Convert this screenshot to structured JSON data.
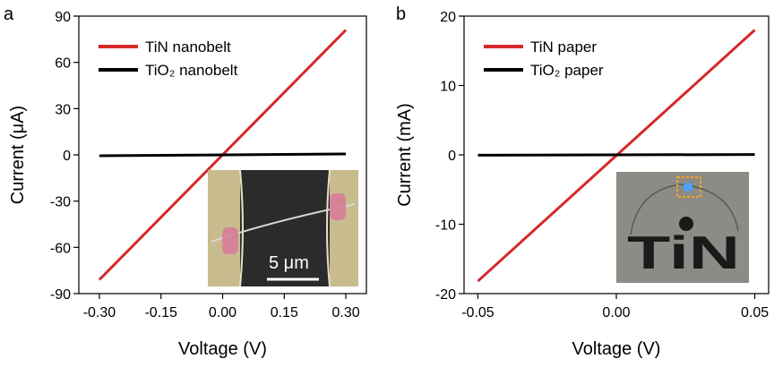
{
  "chart_data": [
    {
      "type": "line",
      "panel_label": "a",
      "xlabel": "Voltage (V)",
      "ylabel": "Current (μA)",
      "xlim": [
        -0.35,
        0.35
      ],
      "ylim": [
        -90,
        90
      ],
      "xticks": [
        -0.3,
        -0.15,
        0.0,
        0.15,
        0.3
      ],
      "xtick_labels": [
        "-0.30",
        "-0.15",
        "0.00",
        "0.15",
        "0.30"
      ],
      "yticks": [
        -90,
        -60,
        -30,
        0,
        30,
        60,
        90
      ],
      "ytick_labels": [
        "-90",
        "-60",
        "-30",
        "0",
        "30",
        "60",
        "90"
      ],
      "legend_position": "top-left",
      "series": [
        {
          "name": "TiN nanobelt",
          "color": "#d62828",
          "x": [
            -0.3,
            0.3
          ],
          "y": [
            -81,
            81
          ]
        },
        {
          "name": "TiO₂ nanobelt",
          "color": "#000000",
          "x": [
            -0.3,
            0.3
          ],
          "y": [
            -0.6,
            0.6
          ]
        }
      ],
      "inset": {
        "description_label": "5 μm"
      }
    },
    {
      "type": "line",
      "panel_label": "b",
      "xlabel": "Voltage (V)",
      "ylabel": "Current (mA)",
      "xlim": [
        -0.055,
        0.055
      ],
      "ylim": [
        -20,
        20
      ],
      "xticks": [
        -0.05,
        0.0,
        0.05
      ],
      "xtick_labels": [
        "-0.05",
        "0.00",
        "0.05"
      ],
      "yticks": [
        -20,
        -10,
        0,
        10,
        20
      ],
      "ytick_labels": [
        "-20",
        "-10",
        "0",
        "10",
        "20"
      ],
      "legend_position": "top-left",
      "series": [
        {
          "name": "TiN paper",
          "color": "#d62828",
          "x": [
            -0.05,
            0.05
          ],
          "y": [
            -18.2,
            18.0
          ]
        },
        {
          "name": "TiO₂ paper",
          "color": "#000000",
          "x": [
            -0.05,
            0.05
          ],
          "y": [
            -0.05,
            0.05
          ]
        }
      ],
      "inset": {
        "description_label": "TiN"
      }
    }
  ]
}
